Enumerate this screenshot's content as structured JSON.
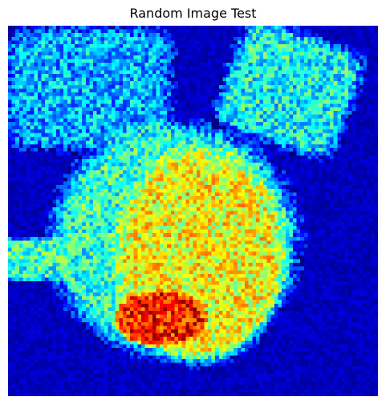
{
  "chart_data": {
    "type": "heatmap",
    "title": "Random Image Test",
    "xlabel": "",
    "ylabel": "",
    "axes_visible": false,
    "colormap": "jet",
    "value_range": [
      0,
      1
    ],
    "grid": {
      "rows": 100,
      "cols": 100
    },
    "noise_amplitude": 0.15,
    "regions": [
      {
        "name": "top-left soft square",
        "shape": "rounded-rect",
        "center": [
          22,
          17
        ],
        "half_size": [
          23,
          17
        ],
        "level": 0.3
      },
      {
        "name": "top-right rotated square",
        "shape": "rotated-rect",
        "center": [
          76,
          17
        ],
        "half_size": [
          18,
          16
        ],
        "rotation_deg": 20,
        "level": 0.38
      },
      {
        "name": "large blob",
        "shape": "ellipse",
        "center": [
          45,
          58
        ],
        "radius": [
          35,
          33
        ],
        "level": 0.42
      },
      {
        "name": "inner bright disc",
        "shape": "ellipse",
        "center": [
          52,
          62
        ],
        "radius": [
          24,
          30
        ],
        "level": 0.62
      },
      {
        "name": "hot spot",
        "shape": "ellipse",
        "center": [
          41,
          79
        ],
        "radius": [
          13,
          8
        ],
        "level": 0.85
      },
      {
        "name": "left arm",
        "shape": "rect",
        "center": [
          8,
          63
        ],
        "half_size": [
          12,
          6
        ],
        "level": 0.42
      }
    ]
  },
  "colors": {
    "background_level": 0.06,
    "figure_background": "#ffffff"
  }
}
